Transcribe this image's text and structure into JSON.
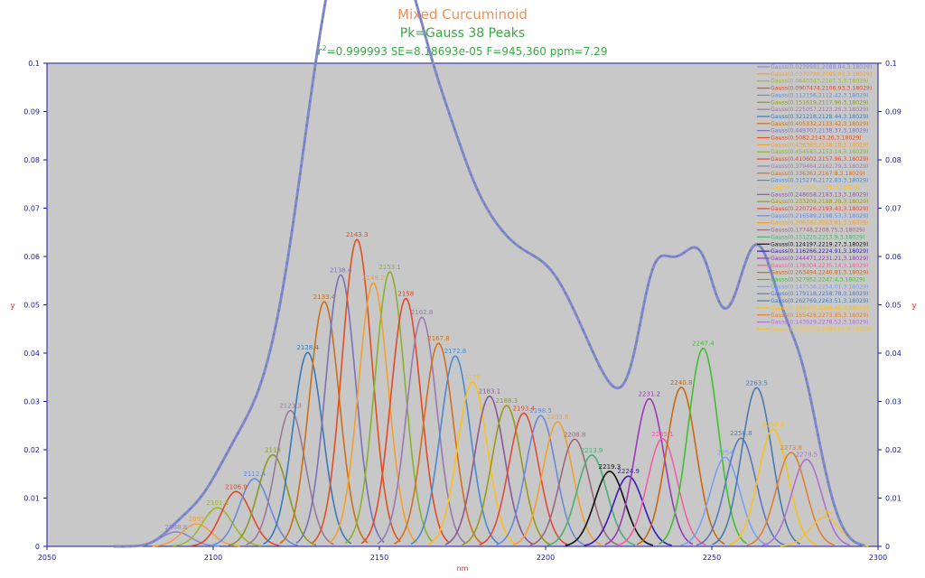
{
  "colors": {
    "title_main": "#f0905a",
    "title_sub": "#3aa844",
    "stats": "#3aa844",
    "axis": "#1a1a9a",
    "plot_bg": "#c8c8c8",
    "data_curve": "#8088d0",
    "xlabel": "#e03030",
    "ylabel": "#e03030"
  },
  "header": {
    "title": "Mixed Curcuminoid",
    "subtitle": "Pk=Gauss  38 Peaks",
    "stats_r2_prefix": "r",
    "stats_r2_exp": "2",
    "stats_rest": "=0.999993  SE=8.18693e-05  F=945,360  ppm=7.29"
  },
  "chart_data": {
    "type": "line",
    "xlabel": "nm",
    "ylabel": "y",
    "xlim": [
      2050,
      2300
    ],
    "ylim": [
      0,
      0.1
    ],
    "x_ticks": [
      "2050",
      "2100",
      "2150",
      "2200",
      "2250",
      "2300"
    ],
    "y_ticks": [
      "0",
      "0.01",
      "0.02",
      "0.03",
      "0.04",
      "0.05",
      "0.06",
      "0.07",
      "0.08",
      "0.09",
      "0.1"
    ],
    "peak_width": 3.18029,
    "peaks": [
      {
        "amp": 0.0239981,
        "center": 2088.84,
        "label": "2088.8",
        "color": "#8a8ad0",
        "legend": "Gauss(0.0239981,2088.84,3.18029)"
      },
      {
        "amp": 0.0370788,
        "center": 2095.03,
        "label": "2095",
        "color": "#f0a040",
        "legend": "Gauss(0.0370788,2095.03,3.18029)"
      },
      {
        "amp": 0.0640343,
        "center": 2101.3,
        "label": "2101.3",
        "color": "#9ab830",
        "legend": "Gauss(0.0640343,2101.3,3.18029)"
      },
      {
        "amp": 0.0907474,
        "center": 2106.93,
        "label": "2106.9",
        "color": "#e04a2a",
        "legend": "Gauss(0.0907474,2106.93,3.18029)"
      },
      {
        "amp": 0.112156,
        "center": 2112.42,
        "label": "2112.4",
        "color": "#6a8ad8",
        "legend": "Gauss(0.112156,2112.42,3.18029)"
      },
      {
        "amp": 0.151619,
        "center": 2117.96,
        "label": "2118",
        "color": "#8a9a20",
        "legend": "Gauss(0.151619,2117.96,3.18029)"
      },
      {
        "amp": 0.225057,
        "center": 2123.26,
        "label": "2123.3",
        "color": "#9a7a9a",
        "legend": "Gauss(0.225057,2123.26,3.18029)"
      },
      {
        "amp": 0.321218,
        "center": 2128.44,
        "label": "2128.4",
        "color": "#3a7ab8",
        "legend": "Gauss(0.321218,2128.44,3.18029)"
      },
      {
        "amp": 0.405332,
        "center": 2133.42,
        "label": "2133.4",
        "color": "#c8701a",
        "legend": "Gauss(0.405332,2133.42,3.18029)"
      },
      {
        "amp": 0.449707,
        "center": 2138.37,
        "label": "2138.4",
        "color": "#7a72b8",
        "legend": "Gauss(0.449707,2138.37,3.18029)"
      },
      {
        "amp": 0.5082,
        "center": 2143.26,
        "label": "2143.3",
        "color": "#e05020",
        "legend": "Gauss(0.5082,2143.26,3.18029)"
      },
      {
        "amp": 0.436385,
        "center": 2148.18,
        "label": "2148.2",
        "color": "#f0a030",
        "legend": "Gauss(0.436385,2148.18,3.18029)"
      },
      {
        "amp": 0.454583,
        "center": 2153.14,
        "label": "2153.1",
        "color": "#8ab030",
        "legend": "Gauss(0.454583,2153.14,3.18029)"
      },
      {
        "amp": 0.410602,
        "center": 2157.96,
        "label": "2158",
        "color": "#e04a2a",
        "legend": "Gauss(0.410602,2157.96,3.18029)"
      },
      {
        "amp": 0.379464,
        "center": 2162.79,
        "label": "2162.8",
        "color": "#9a7ab0",
        "legend": "Gauss(0.379464,2162.79,3.18029)"
      },
      {
        "amp": 0.336362,
        "center": 2167.8,
        "label": "2167.8",
        "color": "#d07020",
        "legend": "Gauss(0.336362,2167.8,3.18029)"
      },
      {
        "amp": 0.315276,
        "center": 2172.83,
        "label": "2172.8",
        "color": "#4a8ad0",
        "legend": "Gauss(0.315276,2172.83,3.18029)"
      },
      {
        "amp": 0.272359,
        "center": 2178,
        "label": "2178",
        "color": "#f8c020",
        "legend": "Gauss(0.272359,2178,3.18029)"
      },
      {
        "amp": 0.248658,
        "center": 2183.13,
        "label": "2183.1",
        "color": "#8a5a9a",
        "legend": "Gauss(0.248658,2183.13,3.18029)"
      },
      {
        "amp": 0.233209,
        "center": 2188.28,
        "label": "2188.3",
        "color": "#9a9a1a",
        "legend": "Gauss(0.233209,2188.28,3.18029)"
      },
      {
        "amp": 0.220726,
        "center": 2193.43,
        "label": "2193.4",
        "color": "#e04a3a",
        "legend": "Gauss(0.220726,2193.43,3.18029)"
      },
      {
        "amp": 0.216589,
        "center": 2198.53,
        "label": "2198.5",
        "color": "#6a8ad8",
        "legend": "Gauss(0.216589,2198.53,3.18029)"
      },
      {
        "amp": 0.206182,
        "center": 2203.61,
        "label": "2203.6",
        "color": "#f0a030",
        "legend": "Gauss(0.206182,2203.61,3.18029)"
      },
      {
        "amp": 0.17748,
        "center": 2208.75,
        "label": "2208.8",
        "color": "#9a6a7a",
        "legend": "Gauss(0.17748,2208.75,3.18029)"
      },
      {
        "amp": 0.151225,
        "center": 2213.9,
        "label": "2213.9",
        "color": "#4ab070",
        "legend": "Gauss(0.151225,2213.9,3.18029)"
      },
      {
        "amp": 0.124197,
        "center": 2219.27,
        "label": "2219.3",
        "color": "#101010",
        "legend": "Gauss(0.124197,2219.27,3.18029)"
      },
      {
        "amp": 0.116266,
        "center": 2224.91,
        "label": "2224.9",
        "color": "#3a1ab8",
        "legend": "Gauss(0.116266,2224.91,3.18029)"
      },
      {
        "amp": 0.244471,
        "center": 2231.21,
        "label": "2231.2",
        "color": "#9a3ab8",
        "legend": "Gauss(0.244471,2231.21,3.18029)"
      },
      {
        "amp": 0.178304,
        "center": 2235.14,
        "label": "2235.1",
        "color": "#f060a0",
        "legend": "Gauss(0.178304,2235.14,3.18029)"
      },
      {
        "amp": 0.263494,
        "center": 2240.81,
        "label": "2240.8",
        "color": "#c86a10",
        "legend": "Gauss(0.263494,2240.81,3.18029)"
      },
      {
        "amp": 0.327952,
        "center": 2247.4,
        "label": "2247.4",
        "color": "#40c030",
        "legend": "Gauss(0.327952,2247.4,3.18029)"
      },
      {
        "amp": 0.147536,
        "center": 2254.01,
        "label": "2254",
        "color": "#7aa0f0",
        "legend": "Gauss(0.147536,2254.01,3.18029)"
      },
      {
        "amp": 0.179118,
        "center": 2258.78,
        "label": "2258.8",
        "color": "#5a78c0",
        "legend": "Gauss(0.179118,2258.78,3.18029)"
      },
      {
        "amp": 0.262769,
        "center": 2263.51,
        "label": "2263.5",
        "color": "#4a7ab0",
        "legend": "Gauss(0.262769,2263.51,3.18029)"
      },
      {
        "amp": 0.194003,
        "center": 2268.45,
        "label": "2268.4",
        "color": "#f8c020",
        "legend": "Gauss(0.194003,2268.45,3.18029)"
      },
      {
        "amp": 0.155428,
        "center": 2273.85,
        "label": "2273.8",
        "color": "#e08030",
        "legend": "Gauss(0.155428,2273.85,3.18029)"
      },
      {
        "amp": 0.143929,
        "center": 2278.52,
        "label": "2278.5",
        "color": "#b070d0",
        "legend": "Gauss(0.143929,2278.52,3.18029)"
      },
      {
        "amp": 0.0485005,
        "center": 2284.04,
        "label": "2284",
        "color": "#f0c040",
        "legend": "Gauss(0.0485005,2284.04,3.18029)"
      }
    ]
  }
}
